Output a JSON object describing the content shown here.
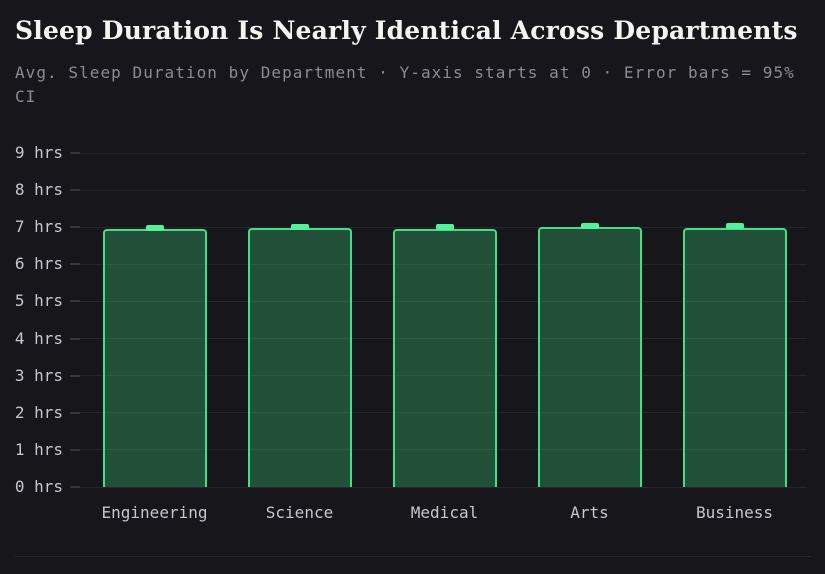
{
  "chart_data": {
    "type": "bar",
    "title": "Sleep Duration Is Nearly Identical Across Departments",
    "subtitle": "Avg. Sleep Duration by Department · Y-axis starts at 0 · Error bars = 95% CI",
    "categories": [
      "Engineering",
      "Science",
      "Medical",
      "Arts",
      "Business"
    ],
    "values": [
      6.95,
      6.98,
      6.96,
      7.0,
      6.99
    ],
    "error_95ci": [
      0.06,
      0.06,
      0.06,
      0.06,
      0.06
    ],
    "unit": "hrs",
    "yticks": [
      0,
      1,
      2,
      3,
      4,
      5,
      6,
      7,
      8,
      9
    ],
    "ytick_labels": [
      "0 hrs",
      "1 hrs",
      "2 hrs",
      "3 hrs",
      "4 hrs",
      "5 hrs",
      "6 hrs",
      "7 hrs",
      "8 hrs",
      "9 hrs"
    ],
    "ylim": [
      0,
      9
    ],
    "xlabel": "",
    "ylabel": "",
    "grid": "horizontal",
    "legend": "none",
    "colors": {
      "background": "#17171b",
      "bar_fill": "rgba(66,229,138,0.28)",
      "bar_border": "#3fe187",
      "error_cap": "#55f099",
      "grid_line": "#26262c",
      "tick_mark": "#35353d",
      "axis_text": "#c6c6cf",
      "title_text": "#f4f4f0",
      "subtitle_text": "#8b8b94",
      "footer_rule": "#26262c"
    }
  }
}
